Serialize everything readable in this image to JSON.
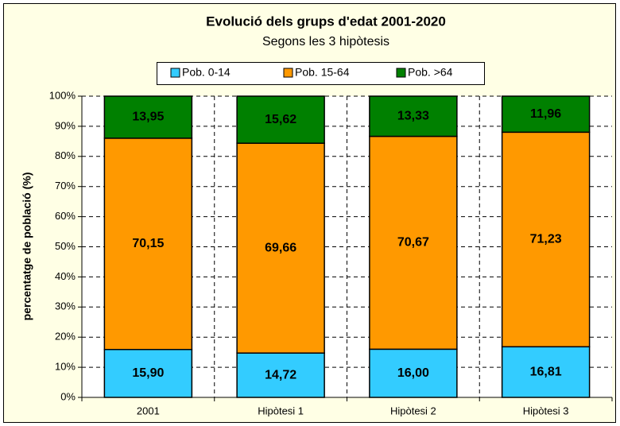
{
  "chart_data": {
    "type": "stacked_bar",
    "title": "Evolució dels grups d'edat 2001-2020",
    "subtitle": "Segons les 3 hipòtesis",
    "y_label": "percentatge de població (%)",
    "categories": [
      "2001",
      "Hipòtesi 1",
      "Hipòtesi 2",
      "Hipòtesi 3"
    ],
    "series": [
      {
        "name": "Pob. 0-14",
        "color": "#33ccff",
        "values": [
          15.9,
          14.72,
          16.0,
          16.81
        ],
        "value_labels": [
          "15,90",
          "14,72",
          "16,00",
          "16,81"
        ]
      },
      {
        "name": "Pob. 15-64",
        "color": "#ff9900",
        "values": [
          70.15,
          69.66,
          70.67,
          71.23
        ],
        "value_labels": [
          "70,15",
          "69,66",
          "70,67",
          "71,23"
        ]
      },
      {
        "name": "Pob. >64",
        "color": "#008000",
        "values": [
          13.95,
          15.62,
          13.33,
          11.96
        ],
        "value_labels": [
          "13,95",
          "15,62",
          "13,33",
          "11,96"
        ]
      }
    ],
    "ylim": [
      0,
      100
    ],
    "yticks": [
      {
        "value": 0,
        "label": "0%"
      },
      {
        "value": 10,
        "label": "10%"
      },
      {
        "value": 20,
        "label": "20%"
      },
      {
        "value": 30,
        "label": "30%"
      },
      {
        "value": 40,
        "label": "40%"
      },
      {
        "value": 50,
        "label": "50%"
      },
      {
        "value": 60,
        "label": "60%"
      },
      {
        "value": 70,
        "label": "70%"
      },
      {
        "value": 80,
        "label": "80%"
      },
      {
        "value": 90,
        "label": "90%"
      },
      {
        "value": 100,
        "label": "100%"
      }
    ],
    "grid": true,
    "legend": "top"
  }
}
